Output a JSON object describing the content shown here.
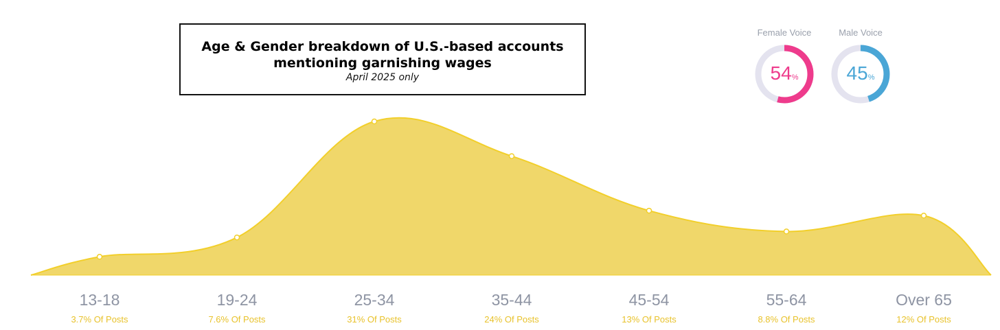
{
  "title": {
    "line1": "Age & Gender breakdown of  U.S.-based accounts",
    "line2": "mentioning garnishing wages",
    "subtitle": "April 2025 only"
  },
  "gender": {
    "female": {
      "label": "Female Voice",
      "value": 54,
      "unit": "%",
      "color": "#ee3b8c"
    },
    "male": {
      "label": "Male Voice",
      "value": 45,
      "unit": "%",
      "color": "#4aa6d6"
    },
    "track_color": "#e4e3ef"
  },
  "chart_data": {
    "type": "area",
    "categories": [
      "13-18",
      "19-24",
      "25-34",
      "35-44",
      "45-54",
      "55-64",
      "Over 65"
    ],
    "values": [
      3.7,
      7.6,
      31,
      24,
      13,
      8.8,
      12
    ],
    "value_labels": [
      "3.7% Of Posts",
      "7.6% Of Posts",
      "31% Of Posts",
      "24% Of Posts",
      "13% Of Posts",
      "8.8% Of Posts",
      "12% Of Posts"
    ],
    "fill_color": "#f0d76a",
    "line_color": "#f2cf2a",
    "ylim": [
      0,
      31
    ],
    "grid": false,
    "xlabel": "",
    "ylabel": ""
  }
}
